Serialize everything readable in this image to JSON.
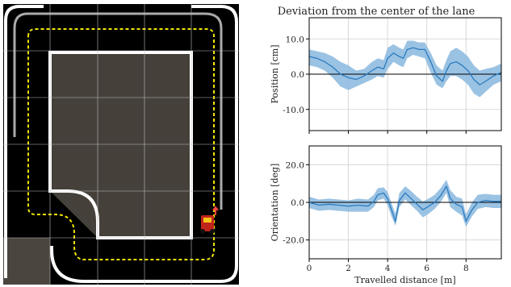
{
  "map": {
    "grid_rows": 6,
    "grid_cols": 5
  },
  "chart_title": "Deviation from the center of the lane",
  "chart_data": [
    {
      "type": "line",
      "ylabel": "Position [cm]",
      "xlabel": "",
      "xlim": [
        0,
        9.8
      ],
      "ylim": [
        -16,
        16
      ],
      "yticks": [
        -10.0,
        0.0,
        10.0
      ],
      "ytick_labels": [
        "-10.0",
        "0.0",
        "10.0"
      ],
      "xticks": [
        0,
        2,
        4,
        6,
        8
      ],
      "show_x_tick_labels": false,
      "grid": true,
      "reference_line": 0,
      "colors": {
        "line": "#2a7bbf",
        "band": "#8fbbe0"
      },
      "x": [
        0,
        0.4,
        0.8,
        1.2,
        1.6,
        2.0,
        2.4,
        2.8,
        3.2,
        3.5,
        3.8,
        4.0,
        4.3,
        4.6,
        4.8,
        5.0,
        5.3,
        5.6,
        5.9,
        6.2,
        6.5,
        6.8,
        7.0,
        7.2,
        7.5,
        7.8,
        8.1,
        8.4,
        8.7,
        9.0,
        9.4,
        9.8
      ],
      "mean": [
        5.0,
        4.5,
        3.5,
        2.0,
        0.0,
        -1.0,
        -1.5,
        -0.5,
        1.0,
        2.0,
        1.5,
        4.5,
        6.0,
        5.0,
        4.5,
        7.0,
        7.5,
        7.0,
        7.0,
        3.5,
        -0.5,
        -2.0,
        1.0,
        3.0,
        3.5,
        2.5,
        1.0,
        -1.5,
        -3.0,
        -2.0,
        -0.5,
        0.5
      ],
      "lower": [
        2.5,
        2.0,
        1.0,
        -1.0,
        -3.5,
        -4.5,
        -3.5,
        -2.5,
        -1.5,
        -0.5,
        -1.0,
        1.5,
        3.5,
        2.5,
        2.0,
        4.5,
        5.5,
        5.0,
        4.5,
        0.5,
        -3.0,
        -4.0,
        -2.0,
        -0.5,
        -0.5,
        -1.5,
        -3.0,
        -5.5,
        -6.5,
        -5.0,
        -3.0,
        -2.0
      ],
      "upper": [
        7.0,
        6.5,
        6.0,
        5.0,
        3.5,
        2.5,
        1.0,
        1.5,
        3.5,
        4.5,
        4.0,
        7.5,
        8.5,
        7.5,
        7.0,
        9.5,
        9.5,
        9.0,
        9.0,
        6.0,
        2.5,
        1.0,
        4.0,
        6.5,
        7.5,
        6.5,
        5.0,
        2.5,
        1.0,
        1.5,
        2.0,
        3.0
      ]
    },
    {
      "type": "line",
      "ylabel": "Orientation [deg]",
      "xlabel": "Travelled distance [m]",
      "xlim": [
        0,
        9.8
      ],
      "ylim": [
        -30,
        30
      ],
      "yticks": [
        -20.0,
        0.0,
        20.0
      ],
      "ytick_labels": [
        "-20.0",
        "0.0",
        "20.0"
      ],
      "xticks": [
        0,
        2,
        4,
        6,
        8
      ],
      "xtick_labels": [
        "0",
        "2",
        "4",
        "6",
        "8"
      ],
      "show_x_tick_labels": true,
      "grid": true,
      "reference_line": 0,
      "colors": {
        "line": "#2a7bbf",
        "band": "#8fbbe0"
      },
      "x": [
        0,
        0.5,
        1.0,
        1.5,
        2.0,
        2.5,
        3.0,
        3.3,
        3.5,
        3.8,
        4.0,
        4.2,
        4.4,
        4.6,
        4.9,
        5.2,
        5.5,
        5.8,
        6.1,
        6.4,
        6.7,
        7.0,
        7.2,
        7.5,
        7.8,
        8.0,
        8.3,
        8.6,
        9.0,
        9.4,
        9.8
      ],
      "mean": [
        0.0,
        -1.5,
        -1.0,
        -1.5,
        -2.0,
        -1.5,
        -2.0,
        0.5,
        4.0,
        5.0,
        2.0,
        -4.0,
        -10.0,
        1.0,
        5.0,
        2.0,
        -1.0,
        -4.0,
        -2.0,
        0.0,
        3.5,
        8.5,
        2.0,
        -1.0,
        -2.5,
        -10.0,
        -4.0,
        0.0,
        1.0,
        0.5,
        0.5
      ],
      "lower": [
        -3.0,
        -4.5,
        -4.0,
        -4.5,
        -5.0,
        -5.0,
        -5.0,
        -2.5,
        1.0,
        2.0,
        -1.5,
        -7.5,
        -12.5,
        -2.5,
        1.5,
        -1.5,
        -4.5,
        -8.0,
        -6.0,
        -3.5,
        0.0,
        5.0,
        -2.5,
        -5.0,
        -7.0,
        -13.0,
        -7.5,
        -3.5,
        -2.5,
        -3.0,
        -3.0
      ],
      "upper": [
        3.0,
        1.5,
        2.0,
        1.5,
        1.0,
        2.0,
        1.5,
        4.0,
        7.5,
        8.0,
        5.5,
        -0.5,
        -6.0,
        5.0,
        8.5,
        6.0,
        3.0,
        0.5,
        2.0,
        4.0,
        7.5,
        12.0,
        6.5,
        3.0,
        2.0,
        -6.5,
        0.0,
        4.0,
        4.5,
        4.0,
        4.0
      ]
    }
  ]
}
